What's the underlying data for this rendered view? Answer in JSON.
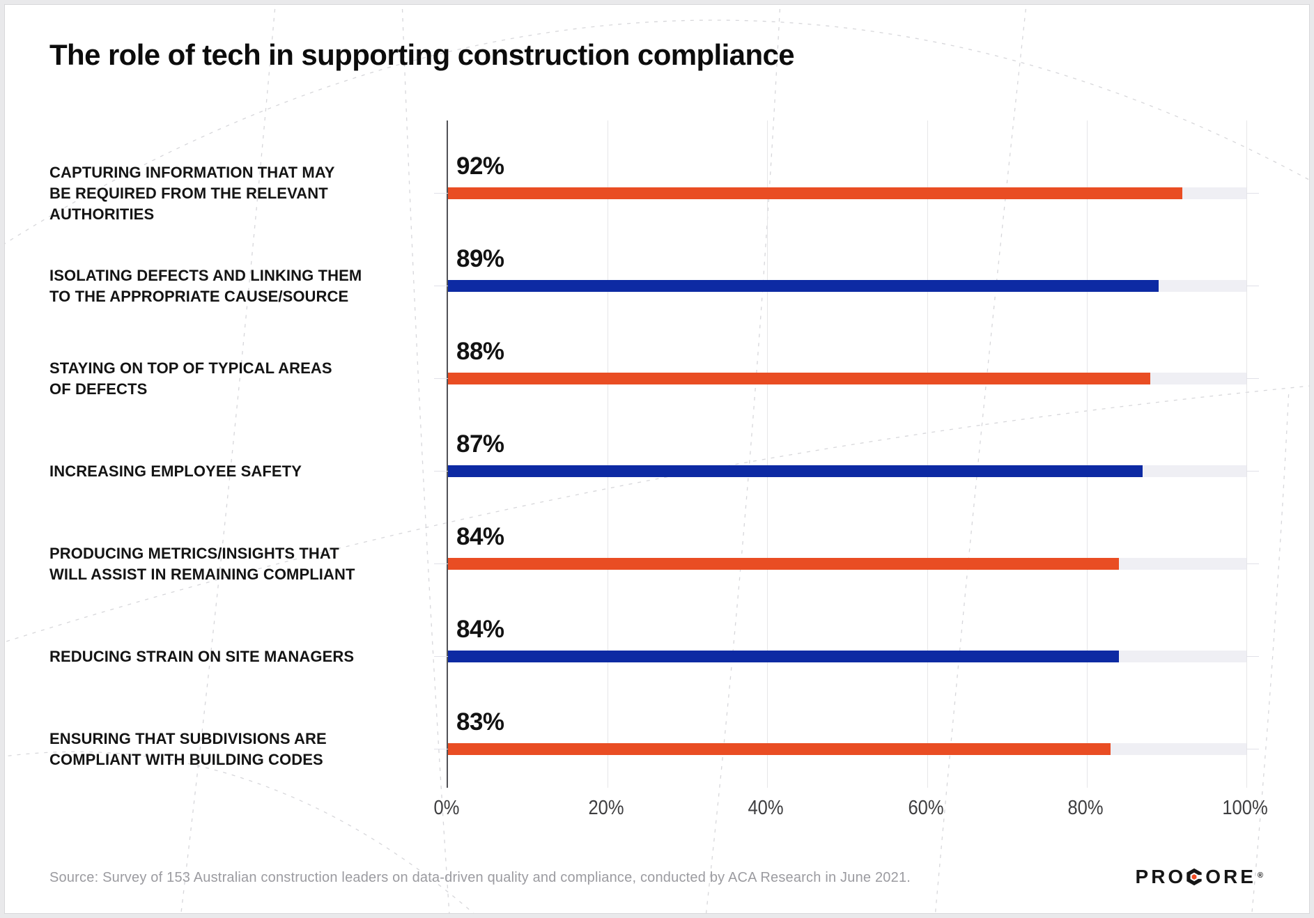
{
  "header": {
    "title": "The role of tech in supporting construction compliance"
  },
  "chart_data": {
    "type": "bar",
    "orientation": "horizontal",
    "title": "The role of tech in supporting construction compliance",
    "categories": [
      "CAPTURING INFORMATION THAT MAY BE REQUIRED FROM THE RELEVANT AUTHORITIES",
      "ISOLATING DEFECTS AND LINKING THEM TO THE APPROPRIATE CAUSE/SOURCE",
      "STAYING ON TOP OF TYPICAL AREAS OF DEFECTS",
      "INCREASING EMPLOYEE SAFETY",
      "PRODUCING METRICS/INSIGHTS THAT WILL ASSIST IN REMAINING COMPLIANT",
      "REDUCING STRAIN ON SITE MANAGERS",
      "ENSURING THAT SUBDIVISIONS ARE COMPLIANT WITH BUILDING CODES"
    ],
    "categories_lines": [
      [
        "CAPTURING INFORMATION THAT MAY",
        "BE REQUIRED FROM THE RELEVANT",
        "AUTHORITIES"
      ],
      [
        "ISOLATING DEFECTS AND LINKING THEM",
        "TO THE APPROPRIATE CAUSE/SOURCE"
      ],
      [
        "STAYING ON TOP OF TYPICAL AREAS",
        "OF DEFECTS"
      ],
      [
        "INCREASING EMPLOYEE SAFETY"
      ],
      [
        "PRODUCING METRICS/INSIGHTS THAT",
        "WILL ASSIST IN REMAINING COMPLIANT"
      ],
      [
        "REDUCING STRAIN ON SITE MANAGERS"
      ],
      [
        "ENSURING THAT SUBDIVISIONS ARE",
        "COMPLIANT WITH BUILDING CODES"
      ]
    ],
    "values": [
      92,
      89,
      88,
      87,
      84,
      84,
      83
    ],
    "value_labels": [
      "92%",
      "89%",
      "88%",
      "87%",
      "84%",
      "84%",
      "83%"
    ],
    "bar_color_sequence": [
      "#E94D23",
      "#0D2AA3",
      "#E94D23",
      "#0D2AA3",
      "#E94D23",
      "#0D2AA3",
      "#E94D23"
    ],
    "x_tick_values": [
      0,
      20,
      40,
      60,
      80,
      100
    ],
    "x_tick_labels": [
      "0%",
      "20%",
      "40%",
      "60%",
      "80%",
      "100%"
    ],
    "xlim": [
      0,
      100
    ],
    "grid": "vertical gridlines every 20%",
    "legend": "none",
    "styles": {
      "orange": "#E94D23",
      "blue": "#0D2AA3",
      "track_color": "#EFEFF4",
      "gridline_color": "#E6E6E8",
      "row_line_color": "#E0E0E8",
      "axis_color": "#515156",
      "value_label_color": "#121212",
      "category_color": "#141414",
      "tick_label_color": "#3E3E40"
    }
  },
  "footer": {
    "source": "Source: Survey of 153 Australian construction leaders on data-driven quality and compliance, conducted by ACA Research in June 2021.",
    "logo_pre": "PRO",
    "logo_post": "ORE",
    "logo_reg": "®",
    "logo_c_dot_color": "#F04B23"
  }
}
